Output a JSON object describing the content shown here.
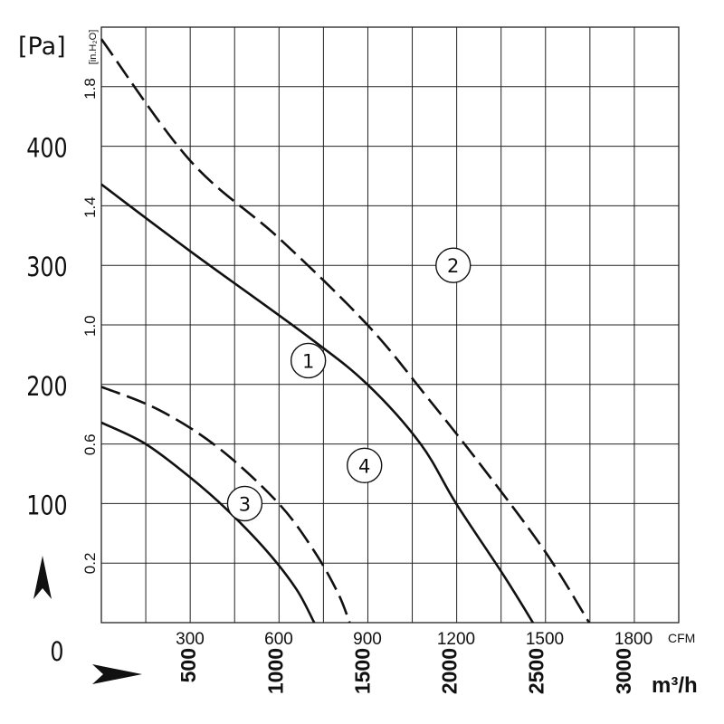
{
  "chart_data": {
    "type": "line",
    "title": "",
    "y_primary": {
      "unit": "[Pa]",
      "range": [
        0,
        500
      ],
      "ticks": [
        "0",
        "100",
        "200",
        "300",
        "400"
      ],
      "tick_values": [
        0,
        100,
        200,
        300,
        400
      ]
    },
    "y_secondary": {
      "unit": "[in.H₂O]",
      "ticks": [
        "0.2",
        "0.6",
        "1.0",
        "1.4",
        "1.8"
      ],
      "tick_values": [
        0.2,
        0.6,
        1.0,
        1.4,
        1.8
      ]
    },
    "x_primary": {
      "unit": "CFM",
      "range": [
        0,
        1953
      ],
      "ticks": [
        "300",
        "600",
        "900",
        "1200",
        "1500",
        "1800"
      ],
      "tick_values": [
        300,
        600,
        900,
        1200,
        1500,
        1800
      ]
    },
    "x_secondary": {
      "unit": "m³/h",
      "ticks": [
        "500",
        "1000",
        "1500",
        "2000",
        "2500",
        "3000"
      ],
      "tick_values": [
        500,
        1000,
        1500,
        2000,
        2500,
        3000
      ]
    },
    "grid": true,
    "series": [
      {
        "name": "1",
        "label": "①",
        "style": "solid",
        "x": [
          0,
          300,
          700,
          900,
          1080,
          1200,
          1360,
          1460
        ],
        "y": [
          368,
          312,
          240,
          200,
          150,
          100,
          40,
          0
        ]
      },
      {
        "name": "2",
        "label": "②",
        "style": "dashed",
        "x": [
          0,
          300,
          600,
          900,
          1100,
          1300,
          1500,
          1650
        ],
        "y": [
          490,
          388,
          323,
          250,
          190,
          127,
          60,
          0
        ]
      },
      {
        "name": "3",
        "label": "③",
        "style": "solid",
        "x": [
          0,
          150,
          300,
          420,
          560,
          660,
          720
        ],
        "y": [
          168,
          150,
          122,
          96,
          60,
          28,
          0
        ]
      },
      {
        "name": "4",
        "label": "④",
        "style": "dashed",
        "x": [
          0,
          200,
          400,
          600,
          720,
          800,
          840
        ],
        "y": [
          198,
          178,
          146,
          100,
          60,
          25,
          0
        ]
      }
    ]
  },
  "axis_marks": {
    "flow_arrow": "➤",
    "pressure_arrow": "↑"
  }
}
